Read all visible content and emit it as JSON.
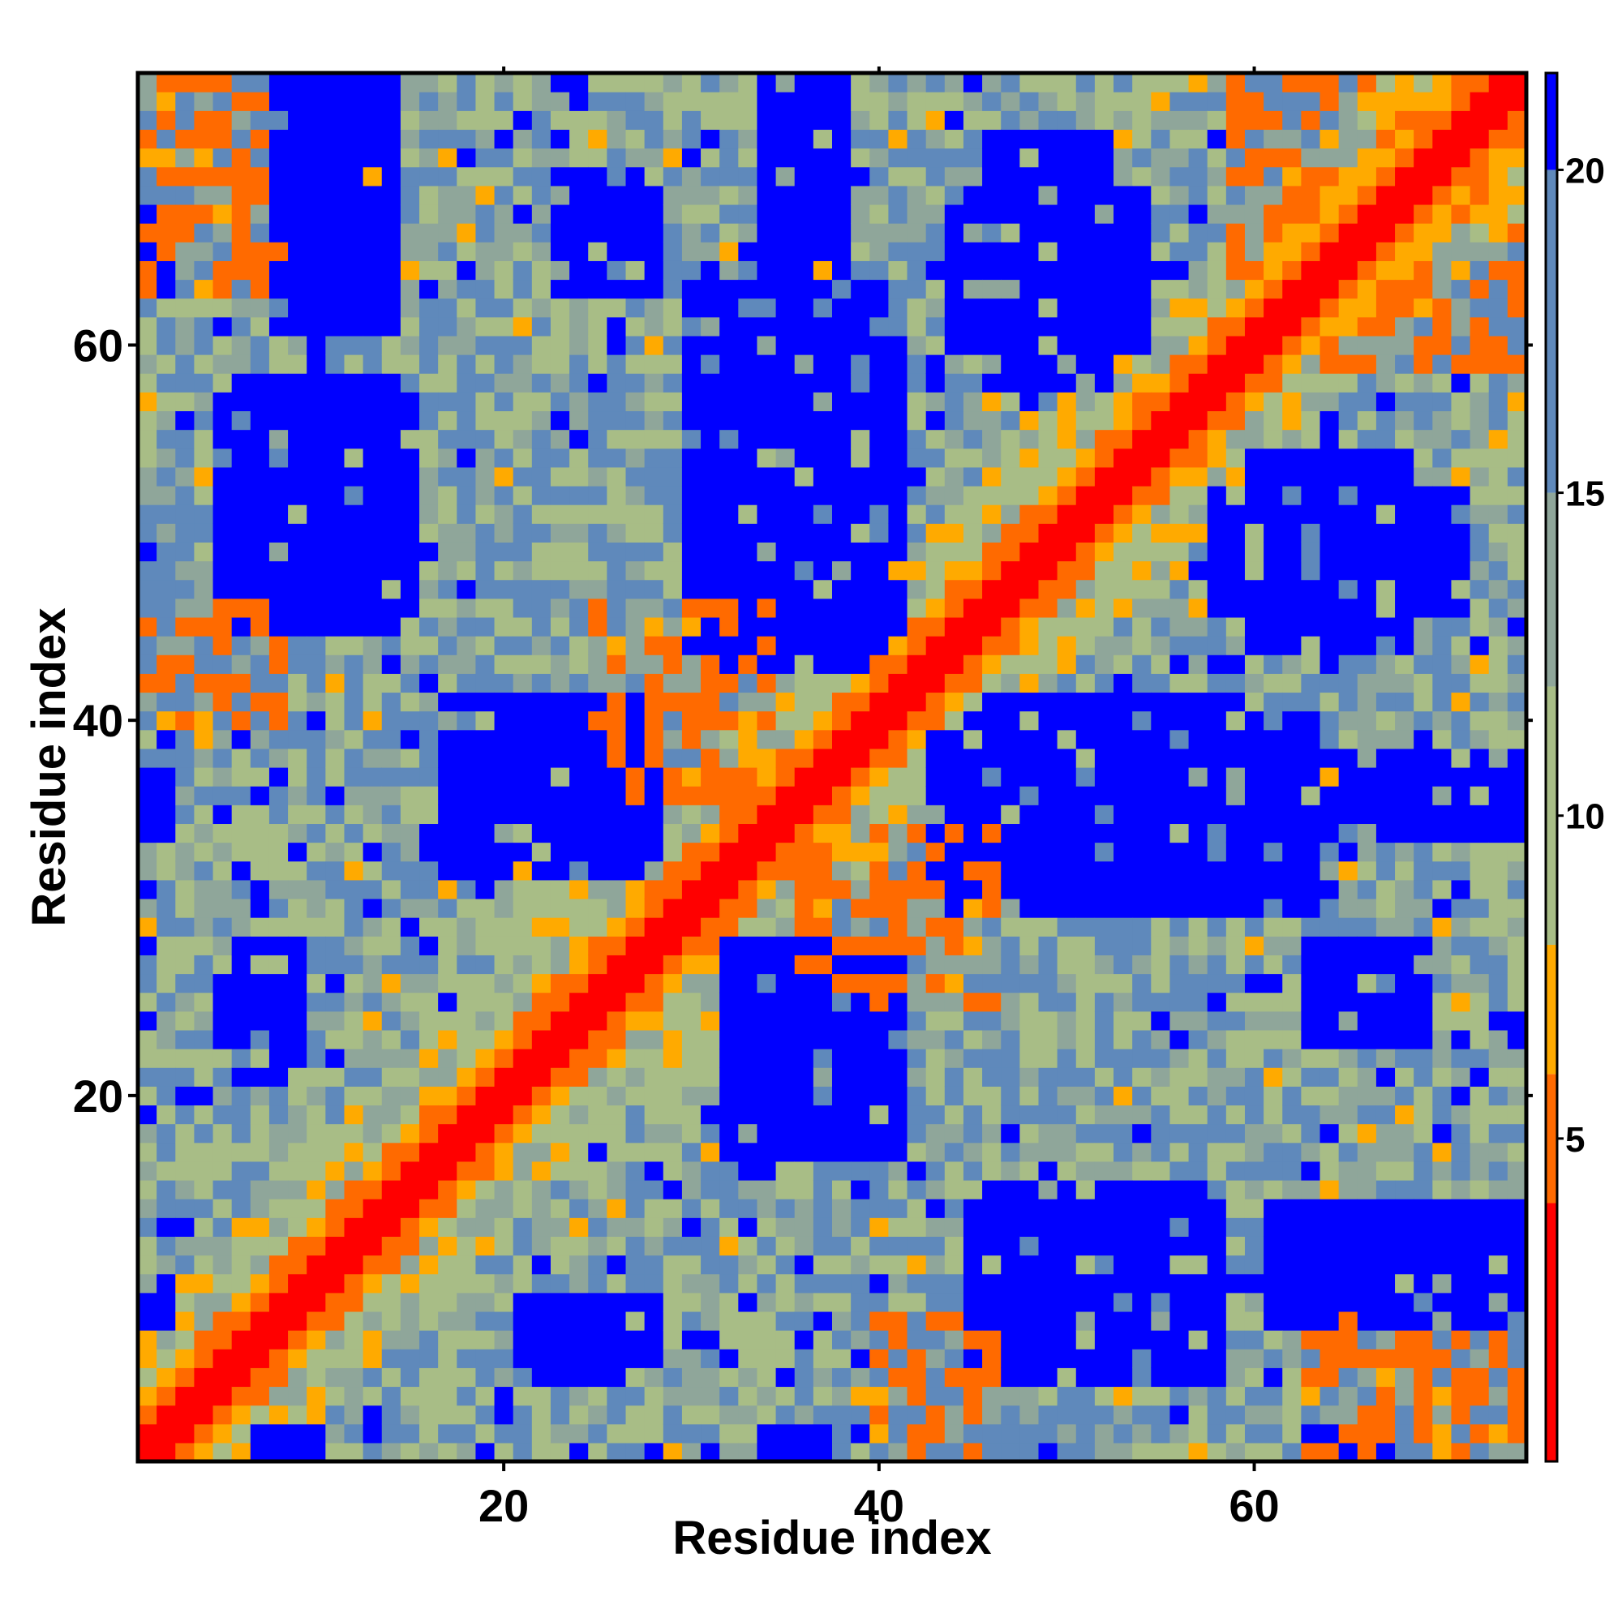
{
  "chart_data": {
    "type": "heatmap",
    "title": "",
    "xlabel": "Residue index",
    "ylabel": "Residue index",
    "n_residues": 74,
    "xlim": [
      0.5,
      74.5
    ],
    "ylim": [
      0.5,
      74.5
    ],
    "x_ticks": [
      20,
      40,
      60
    ],
    "y_ticks": [
      20,
      40,
      60
    ],
    "colorbar": {
      "ticks": [
        5,
        10,
        15,
        20
      ],
      "range": [
        0,
        21.5
      ],
      "colors": [
        {
          "max": 4,
          "color": "#ff0000"
        },
        {
          "max": 6,
          "color": "#ff6a00"
        },
        {
          "max": 8,
          "color": "#ffaa00"
        },
        {
          "max": 12,
          "color": "#a8bd86"
        },
        {
          "max": 15,
          "color": "#8fa69a"
        },
        {
          "max": 20,
          "color": "#5f89bb"
        },
        {
          "max": 999,
          "color": "#0000ff"
        }
      ]
    },
    "matrix_description": "Symmetric inter-residue distance map (Å-like units); red diagonal band near 0, blue blocks above 20.",
    "blue_blocks": [
      {
        "x": [
          8,
          14
        ],
        "y": [
          61,
          74
        ],
        "d": 21
      },
      {
        "x": [
          34,
          38
        ],
        "y": [
          64,
          74
        ],
        "d": 21
      },
      {
        "x": [
          46,
          52
        ],
        "y": [
          58,
          71
        ],
        "d": 21
      },
      {
        "x": [
          23,
          28
        ],
        "y": [
          63,
          69
        ],
        "d": 21
      },
      {
        "x": [
          5,
          14
        ],
        "y": [
          45,
          58
        ],
        "d": 21
      },
      {
        "x": [
          31,
          41
        ],
        "y": [
          43,
          60
        ],
        "d": 21
      },
      {
        "x": [
          60,
          68
        ],
        "y": [
          44,
          54
        ],
        "d": 21
      },
      {
        "x": [
          17,
          28
        ],
        "y": [
          32,
          41
        ],
        "d": 21
      },
      {
        "x": [
          44,
          63
        ],
        "y": [
          30,
          40
        ],
        "d": 21
      },
      {
        "x": [
          1,
          2
        ],
        "y": [
          34,
          37
        ],
        "d": 21
      },
      {
        "x": [
          68,
          74
        ],
        "y": [
          34,
          37
        ],
        "d": 21
      },
      {
        "x": [
          32,
          40
        ],
        "y": [
          17,
          27
        ],
        "d": 21
      },
      {
        "x": [
          5,
          9
        ],
        "y": [
          21,
          26
        ],
        "d": 21
      },
      {
        "x": [
          63,
          67
        ],
        "y": [
          23,
          27
        ],
        "d": 21
      },
      {
        "x": [
          46,
          57
        ],
        "y": [
          5,
          15
        ],
        "d": 21
      },
      {
        "x": [
          22,
          28
        ],
        "y": [
          6,
          9
        ],
        "d": 21
      },
      {
        "x": [
          1,
          2
        ],
        "y": [
          7,
          9
        ],
        "d": 21
      },
      {
        "x": [
          72,
          74
        ],
        "y": [
          8,
          14
        ],
        "d": 21
      },
      {
        "x": [
          34,
          37
        ],
        "y": [
          1,
          2
        ],
        "d": 21
      },
      {
        "x": [
          8,
          10
        ],
        "y": [
          1,
          2
        ],
        "d": 21
      },
      {
        "x": [
          63,
          67
        ],
        "y": [
          1,
          2
        ],
        "d": 21
      }
    ],
    "orange_features": [
      {
        "x": [
          1,
          7
        ],
        "y": [
          68,
          74
        ],
        "d": 7
      },
      {
        "x": [
          1,
          8
        ],
        "y": [
          40,
          46
        ],
        "d": 7
      },
      {
        "x": [
          25,
          32
        ],
        "y": [
          38,
          46
        ],
        "d": 7
      },
      {
        "x": [
          36,
          46
        ],
        "y": [
          25,
          34
        ],
        "d": 7
      },
      {
        "x": [
          40,
          46
        ],
        "y": [
          1,
          8
        ],
        "d": 7
      },
      {
        "x": [
          63,
          74
        ],
        "y": [
          1,
          8
        ],
        "d": 7
      },
      {
        "x": [
          59,
          68
        ],
        "y": [
          62,
          74
        ],
        "d": 7
      }
    ]
  }
}
